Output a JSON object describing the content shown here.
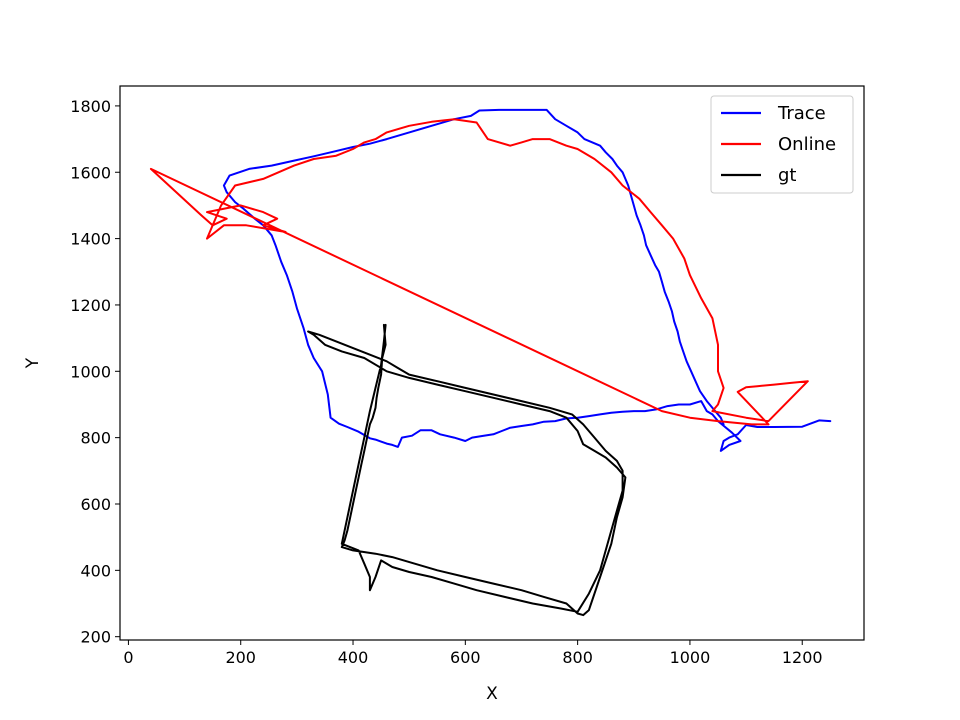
{
  "chart_data": {
    "type": "line",
    "title": "",
    "xlabel": "X",
    "ylabel": "Y",
    "xlim": [
      -15,
      1310
    ],
    "ylim": [
      190,
      1860
    ],
    "xticks": [
      0,
      200,
      400,
      600,
      800,
      1000,
      1200
    ],
    "yticks": [
      200,
      400,
      600,
      800,
      1000,
      1200,
      1400,
      1600,
      1800
    ],
    "xtick_labels": [
      "0",
      "200",
      "400",
      "600",
      "800",
      "1000",
      "1200"
    ],
    "ytick_labels": [
      "200",
      "400",
      "600",
      "800",
      "1000",
      "1200",
      "1400",
      "1600",
      "1800"
    ],
    "grid": false,
    "legend_position": "top-right",
    "series": [
      {
        "name": "Trace",
        "color": "#0000ff",
        "points": [
          [
            1250,
            850
          ],
          [
            1230,
            852
          ],
          [
            1200,
            833
          ],
          [
            1150,
            832
          ],
          [
            1120,
            832
          ],
          [
            1100,
            838
          ],
          [
            1085,
            810
          ],
          [
            1070,
            800
          ],
          [
            1060,
            790
          ],
          [
            1055,
            760
          ],
          [
            1070,
            778
          ],
          [
            1090,
            790
          ],
          [
            1075,
            815
          ],
          [
            1050,
            850
          ],
          [
            1040,
            870
          ],
          [
            1030,
            880
          ],
          [
            1020,
            910
          ],
          [
            1000,
            900
          ],
          [
            980,
            900
          ],
          [
            960,
            895
          ],
          [
            940,
            885
          ],
          [
            920,
            880
          ],
          [
            900,
            880
          ],
          [
            880,
            878
          ],
          [
            860,
            875
          ],
          [
            840,
            870
          ],
          [
            820,
            865
          ],
          [
            800,
            860
          ],
          [
            780,
            858
          ],
          [
            760,
            850
          ],
          [
            740,
            848
          ],
          [
            720,
            840
          ],
          [
            700,
            835
          ],
          [
            680,
            830
          ],
          [
            665,
            820
          ],
          [
            650,
            810
          ],
          [
            630,
            805
          ],
          [
            612,
            800
          ],
          [
            600,
            790
          ],
          [
            580,
            800
          ],
          [
            555,
            810
          ],
          [
            540,
            822
          ],
          [
            520,
            822
          ],
          [
            505,
            806
          ],
          [
            487,
            800
          ],
          [
            480,
            772
          ],
          [
            470,
            778
          ],
          [
            460,
            782
          ],
          [
            440,
            794
          ],
          [
            430,
            798
          ],
          [
            410,
            818
          ],
          [
            390,
            832
          ],
          [
            375,
            842
          ],
          [
            360,
            860
          ],
          [
            358,
            890
          ],
          [
            355,
            930
          ],
          [
            345,
            1000
          ],
          [
            330,
            1040
          ],
          [
            320,
            1080
          ],
          [
            312,
            1130
          ],
          [
            300,
            1190
          ],
          [
            292,
            1240
          ],
          [
            282,
            1290
          ],
          [
            272,
            1330
          ],
          [
            262,
            1380
          ],
          [
            255,
            1410
          ],
          [
            240,
            1440
          ],
          [
            225,
            1460
          ],
          [
            205,
            1490
          ],
          [
            190,
            1510
          ],
          [
            175,
            1540
          ],
          [
            170,
            1560
          ],
          [
            180,
            1590
          ],
          [
            215,
            1610
          ],
          [
            255,
            1620
          ],
          [
            295,
            1635
          ],
          [
            330,
            1648
          ],
          [
            365,
            1662
          ],
          [
            400,
            1676
          ],
          [
            430,
            1686
          ],
          [
            460,
            1700
          ],
          [
            500,
            1720
          ],
          [
            540,
            1740
          ],
          [
            580,
            1760
          ],
          [
            610,
            1770
          ],
          [
            625,
            1786
          ],
          [
            660,
            1788
          ],
          [
            700,
            1788
          ],
          [
            745,
            1788
          ],
          [
            760,
            1760
          ],
          [
            780,
            1740
          ],
          [
            800,
            1720
          ],
          [
            812,
            1700
          ],
          [
            840,
            1680
          ],
          [
            850,
            1660
          ],
          [
            862,
            1640
          ],
          [
            870,
            1620
          ],
          [
            880,
            1600
          ],
          [
            885,
            1580
          ],
          [
            890,
            1560
          ],
          [
            895,
            1530
          ],
          [
            900,
            1500
          ],
          [
            905,
            1470
          ],
          [
            912,
            1440
          ],
          [
            918,
            1410
          ],
          [
            922,
            1380
          ],
          [
            930,
            1350
          ],
          [
            938,
            1320
          ],
          [
            945,
            1300
          ],
          [
            950,
            1270
          ],
          [
            955,
            1240
          ],
          [
            962,
            1210
          ],
          [
            968,
            1180
          ],
          [
            972,
            1150
          ],
          [
            978,
            1120
          ],
          [
            982,
            1090
          ],
          [
            988,
            1060
          ],
          [
            994,
            1030
          ],
          [
            1002,
            1000
          ],
          [
            1010,
            970
          ],
          [
            1018,
            940
          ],
          [
            1030,
            910
          ],
          [
            1045,
            880
          ],
          [
            1055,
            860
          ],
          [
            1060,
            840
          ]
        ]
      },
      {
        "name": "Online",
        "color": "#ff0000",
        "points": [
          [
            1210,
            970
          ],
          [
            1180,
            965
          ],
          [
            1150,
            960
          ],
          [
            1120,
            955
          ],
          [
            1100,
            952
          ],
          [
            1085,
            938
          ],
          [
            1140,
            840
          ],
          [
            1110,
            840
          ],
          [
            1050,
            850
          ],
          [
            1000,
            860
          ],
          [
            950,
            880
          ],
          [
            40,
            1610
          ],
          [
            130,
            1470
          ],
          [
            150,
            1440
          ],
          [
            175,
            1460
          ],
          [
            140,
            1480
          ],
          [
            200,
            1500
          ],
          [
            240,
            1480
          ],
          [
            265,
            1460
          ],
          [
            240,
            1440
          ],
          [
            280,
            1420
          ],
          [
            210,
            1440
          ],
          [
            170,
            1440
          ],
          [
            140,
            1400
          ],
          [
            165,
            1500
          ],
          [
            190,
            1560
          ],
          [
            240,
            1580
          ],
          [
            295,
            1620
          ],
          [
            330,
            1640
          ],
          [
            370,
            1650
          ],
          [
            400,
            1670
          ],
          [
            420,
            1690
          ],
          [
            440,
            1700
          ],
          [
            460,
            1720
          ],
          [
            500,
            1740
          ],
          [
            540,
            1752
          ],
          [
            580,
            1760
          ],
          [
            620,
            1750
          ],
          [
            640,
            1700
          ],
          [
            680,
            1680
          ],
          [
            700,
            1690
          ],
          [
            720,
            1700
          ],
          [
            750,
            1700
          ],
          [
            780,
            1680
          ],
          [
            800,
            1670
          ],
          [
            830,
            1640
          ],
          [
            860,
            1600
          ],
          [
            880,
            1560
          ],
          [
            910,
            1520
          ],
          [
            930,
            1480
          ],
          [
            950,
            1440
          ],
          [
            970,
            1400
          ],
          [
            990,
            1340
          ],
          [
            1000,
            1290
          ],
          [
            1020,
            1220
          ],
          [
            1040,
            1160
          ],
          [
            1050,
            1080
          ],
          [
            1050,
            1000
          ],
          [
            1060,
            950
          ],
          [
            1050,
            900
          ],
          [
            1040,
            880
          ],
          [
            1100,
            860
          ],
          [
            1140,
            850
          ],
          [
            1210,
            970
          ]
        ]
      },
      {
        "name": "gt",
        "color": "#000000",
        "points": [
          [
            455,
            1140
          ],
          [
            458,
            1080
          ],
          [
            452,
            1040
          ],
          [
            450,
            990
          ],
          [
            445,
            950
          ],
          [
            442,
            920
          ],
          [
            440,
            890
          ],
          [
            435,
            860
          ],
          [
            430,
            840
          ],
          [
            425,
            800
          ],
          [
            420,
            760
          ],
          [
            415,
            720
          ],
          [
            410,
            680
          ],
          [
            405,
            640
          ],
          [
            400,
            600
          ],
          [
            395,
            560
          ],
          [
            390,
            520
          ],
          [
            385,
            490
          ],
          [
            380,
            470
          ],
          [
            400,
            460
          ],
          [
            440,
            450
          ],
          [
            470,
            440
          ],
          [
            510,
            420
          ],
          [
            550,
            400
          ],
          [
            600,
            380
          ],
          [
            650,
            360
          ],
          [
            700,
            340
          ],
          [
            740,
            320
          ],
          [
            780,
            300
          ],
          [
            800,
            270
          ],
          [
            810,
            265
          ],
          [
            820,
            280
          ],
          [
            840,
            380
          ],
          [
            860,
            480
          ],
          [
            870,
            560
          ],
          [
            880,
            620
          ],
          [
            885,
            680
          ],
          [
            870,
            710
          ],
          [
            850,
            740
          ],
          [
            830,
            760
          ],
          [
            810,
            780
          ],
          [
            800,
            820
          ],
          [
            780,
            860
          ],
          [
            750,
            880
          ],
          [
            700,
            900
          ],
          [
            650,
            920
          ],
          [
            600,
            940
          ],
          [
            550,
            960
          ],
          [
            500,
            980
          ],
          [
            460,
            1000
          ],
          [
            420,
            1040
          ],
          [
            380,
            1060
          ],
          [
            350,
            1080
          ],
          [
            330,
            1110
          ],
          [
            320,
            1120
          ],
          [
            340,
            1110
          ],
          [
            370,
            1090
          ],
          [
            400,
            1070
          ],
          [
            430,
            1050
          ],
          [
            460,
            1030
          ],
          [
            480,
            1010
          ],
          [
            500,
            990
          ],
          [
            550,
            970
          ],
          [
            600,
            950
          ],
          [
            650,
            930
          ],
          [
            700,
            910
          ],
          [
            750,
            890
          ],
          [
            790,
            870
          ],
          [
            810,
            840
          ],
          [
            830,
            800
          ],
          [
            850,
            760
          ],
          [
            870,
            730
          ],
          [
            880,
            700
          ],
          [
            880,
            640
          ],
          [
            870,
            580
          ],
          [
            860,
            520
          ],
          [
            850,
            460
          ],
          [
            840,
            400
          ],
          [
            820,
            330
          ],
          [
            800,
            275
          ],
          [
            770,
            285
          ],
          [
            720,
            300
          ],
          [
            670,
            320
          ],
          [
            620,
            340
          ],
          [
            580,
            360
          ],
          [
            540,
            380
          ],
          [
            500,
            395
          ],
          [
            470,
            410
          ],
          [
            450,
            430
          ],
          [
            440,
            380
          ],
          [
            430,
            340
          ],
          [
            430,
            380
          ],
          [
            420,
            420
          ],
          [
            410,
            460
          ],
          [
            380,
            480
          ],
          [
            390,
            560
          ],
          [
            400,
            640
          ],
          [
            410,
            720
          ],
          [
            420,
            800
          ],
          [
            430,
            880
          ],
          [
            440,
            950
          ],
          [
            450,
            1020
          ],
          [
            455,
            1090
          ],
          [
            458,
            1140
          ]
        ]
      }
    ]
  }
}
